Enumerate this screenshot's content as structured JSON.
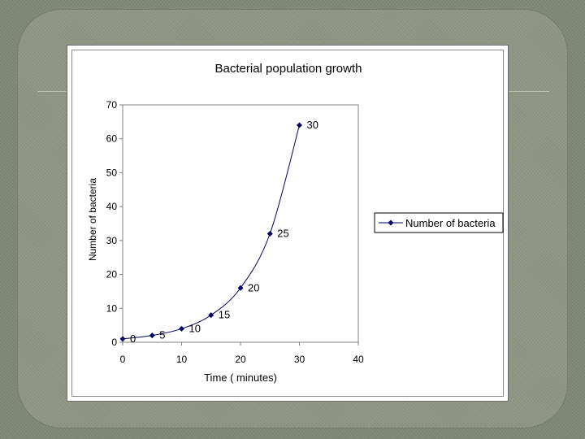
{
  "chart_data": {
    "type": "line",
    "title": "Bacterial population growth",
    "xlabel": "Time ( minutes)",
    "ylabel": "Number of bacteria",
    "xlim": [
      0,
      40
    ],
    "ylim": [
      0,
      70
    ],
    "x_ticks": [
      0,
      10,
      20,
      30,
      40
    ],
    "y_ticks": [
      0,
      10,
      20,
      30,
      40,
      50,
      60,
      70
    ],
    "grid": false,
    "legend_position": "right",
    "series": [
      {
        "name": "Number of bacteria",
        "color": "#000066",
        "marker": "diamond",
        "x": [
          0,
          5,
          10,
          15,
          20,
          25,
          30
        ],
        "y": [
          1,
          2,
          4,
          8,
          16,
          32,
          64
        ],
        "point_labels": [
          "0",
          "5",
          "10",
          "15",
          "20",
          "25",
          "30"
        ]
      }
    ]
  }
}
